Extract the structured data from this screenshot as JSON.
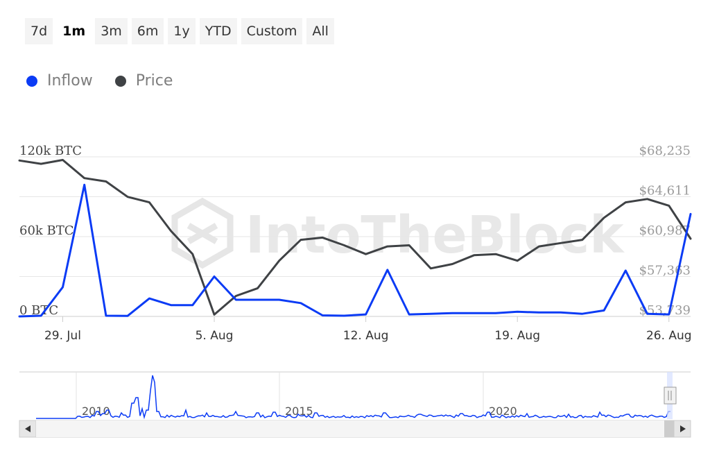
{
  "range_buttons": [
    {
      "label": "7d",
      "active": false
    },
    {
      "label": "1m",
      "active": true
    },
    {
      "label": "3m",
      "active": false
    },
    {
      "label": "6m",
      "active": false
    },
    {
      "label": "1y",
      "active": false
    },
    {
      "label": "YTD",
      "active": false
    },
    {
      "label": "Custom",
      "active": false
    },
    {
      "label": "All",
      "active": false
    }
  ],
  "watermark": "IntoTheBlock",
  "colors": {
    "inflow": "#0b3bf5",
    "price": "#3f4245",
    "grid": "#e6e6e6"
  },
  "chart_data": {
    "type": "line",
    "legend_position": "top-left",
    "grid": true,
    "x_tick_labels": [
      "29. Jul",
      "5. Aug",
      "12. Aug",
      "19. Aug",
      "26. Aug"
    ],
    "x_tick_days": [
      2,
      9,
      16,
      23,
      30
    ],
    "x_range": [
      0,
      31
    ],
    "y_left": {
      "ticks": [
        "0 BTC",
        "60k BTC",
        "120k BTC"
      ],
      "range": [
        0,
        120000
      ]
    },
    "y_right": {
      "ticks": [
        "$53,739",
        "$57,363",
        "$60,987",
        "$64,611",
        "$68,235"
      ],
      "range": [
        53739,
        68235
      ]
    },
    "series": [
      {
        "name": "Inflow",
        "axis": "left",
        "x": [
          0,
          1,
          2,
          3,
          4,
          5,
          6,
          7,
          8,
          9,
          10,
          11,
          12,
          13,
          14,
          15,
          16,
          17,
          18,
          19,
          20,
          21,
          22,
          23,
          24,
          25,
          26,
          27,
          28,
          29,
          30,
          31
        ],
        "values": [
          0,
          500,
          22000,
          99000,
          500,
          400,
          13500,
          8500,
          8500,
          30000,
          12500,
          12500,
          12500,
          10000,
          800,
          500,
          1500,
          35000,
          1500,
          2000,
          2500,
          2500,
          2500,
          3500,
          3000,
          3000,
          2000,
          4500,
          34500,
          2000,
          1500,
          77000
        ]
      },
      {
        "name": "Price",
        "axis": "right",
        "x": [
          0,
          1,
          2,
          3,
          4,
          5,
          6,
          7,
          8,
          9,
          10,
          11,
          12,
          13,
          14,
          15,
          16,
          17,
          18,
          19,
          20,
          21,
          22,
          23,
          24,
          25,
          26,
          27,
          28,
          29,
          30,
          31
        ],
        "values": [
          67900,
          67600,
          67950,
          66300,
          66000,
          64600,
          64100,
          61500,
          59400,
          53900,
          55600,
          56300,
          58800,
          60700,
          60900,
          60200,
          59400,
          60100,
          60200,
          58100,
          58500,
          59300,
          59400,
          58800,
          60100,
          60400,
          60700,
          62700,
          64100,
          64400,
          63800,
          60800
        ]
      }
    ],
    "navigator": {
      "x_labels": [
        "2010",
        "2015",
        "2020"
      ]
    }
  }
}
